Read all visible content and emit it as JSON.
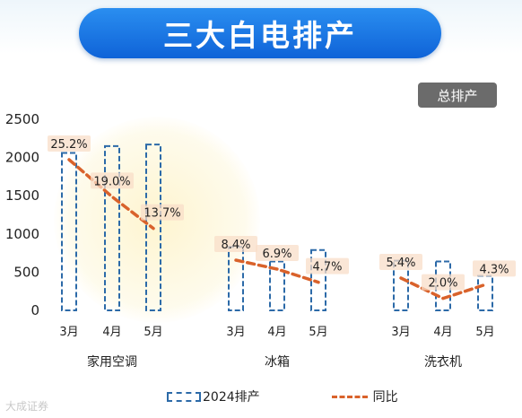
{
  "header": {
    "title": "三大白电排产"
  },
  "badge": {
    "label": "总排产"
  },
  "legend": {
    "bar_label": "2024排产",
    "line_label": "同比"
  },
  "watermark": {
    "text": "大成证券"
  },
  "colors": {
    "title_bg": "#1a7be6",
    "bar_stroke": "#2c6aa8",
    "line": "#d9622b",
    "badge_bg": "#6b6b6b"
  },
  "chart_data": {
    "type": "bar",
    "title": "三大白电排产",
    "ylim": [
      0,
      2500
    ],
    "yticks": [
      0,
      500,
      1000,
      1500,
      2000,
      2500
    ],
    "groups": [
      {
        "name": "家用空调",
        "months": [
          "3月",
          "4月",
          "5月"
        ],
        "values": [
          2060,
          2150,
          2170
        ],
        "yoy": [
          "25.2%",
          "19.0%",
          "13.7%"
        ],
        "yoy_values": [
          25.2,
          19.0,
          13.7
        ]
      },
      {
        "name": "冰箱",
        "months": [
          "3月",
          "4月",
          "5月"
        ],
        "values": [
          830,
          640,
          790
        ],
        "yoy": [
          "8.4%",
          "6.9%",
          "4.7%"
        ],
        "yoy_values": [
          8.4,
          6.9,
          4.7
        ]
      },
      {
        "name": "洗衣机",
        "months": [
          "3月",
          "4月",
          "5月"
        ],
        "values": [
          650,
          640,
          450
        ],
        "yoy": [
          "5.4%",
          "2.0%",
          "4.3%"
        ],
        "yoy_values": [
          5.4,
          2.0,
          4.3
        ]
      }
    ],
    "series": [
      {
        "name": "2024排产",
        "kind": "bar"
      },
      {
        "name": "同比",
        "kind": "line"
      }
    ],
    "legend_position": "bottom",
    "grid": false
  }
}
